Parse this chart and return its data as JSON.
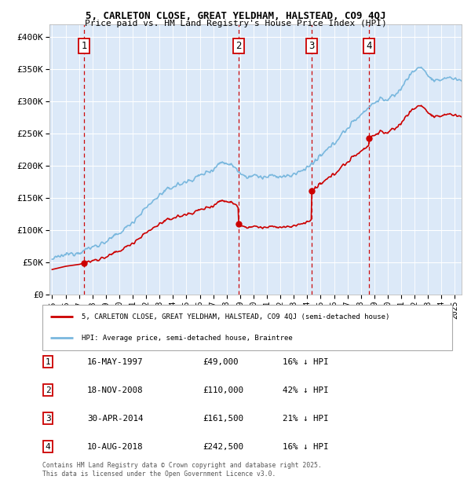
{
  "title_line1": "5, CARLETON CLOSE, GREAT YELDHAM, HALSTEAD, CO9 4QJ",
  "title_line2": "Price paid vs. HM Land Registry's House Price Index (HPI)",
  "ylabel_ticks": [
    "£0",
    "£50K",
    "£100K",
    "£150K",
    "£200K",
    "£250K",
    "£300K",
    "£350K",
    "£400K"
  ],
  "ytick_values": [
    0,
    50000,
    100000,
    150000,
    200000,
    250000,
    300000,
    350000,
    400000
  ],
  "xlim": [
    1994.8,
    2025.5
  ],
  "ylim": [
    0,
    420000
  ],
  "background_color": "#dce9f8",
  "sale_points": [
    {
      "date": 1997.37,
      "price": 49000,
      "label": "1"
    },
    {
      "date": 2008.88,
      "price": 110000,
      "label": "2"
    },
    {
      "date": 2014.33,
      "price": 161500,
      "label": "3"
    },
    {
      "date": 2018.6,
      "price": 242500,
      "label": "4"
    }
  ],
  "hpi_line_color": "#7ab8de",
  "price_line_color": "#cc0000",
  "vline_color": "#cc0000",
  "marker_color": "#cc0000",
  "legend_label_price": "5, CARLETON CLOSE, GREAT YELDHAM, HALSTEAD, CO9 4QJ (semi-detached house)",
  "legend_label_hpi": "HPI: Average price, semi-detached house, Braintree",
  "table_rows": [
    [
      "1",
      "16-MAY-1997",
      "£49,000",
      "16% ↓ HPI"
    ],
    [
      "2",
      "18-NOV-2008",
      "£110,000",
      "42% ↓ HPI"
    ],
    [
      "3",
      "30-APR-2014",
      "£161,500",
      "21% ↓ HPI"
    ],
    [
      "4",
      "10-AUG-2018",
      "£242,500",
      "16% ↓ HPI"
    ]
  ],
  "footnote": "Contains HM Land Registry data © Crown copyright and database right 2025.\nThis data is licensed under the Open Government Licence v3.0.",
  "xticks": [
    1995,
    1996,
    1997,
    1998,
    1999,
    2000,
    2001,
    2002,
    2003,
    2004,
    2005,
    2006,
    2007,
    2008,
    2009,
    2010,
    2011,
    2012,
    2013,
    2014,
    2015,
    2016,
    2017,
    2018,
    2019,
    2020,
    2021,
    2022,
    2023,
    2024,
    2025
  ]
}
